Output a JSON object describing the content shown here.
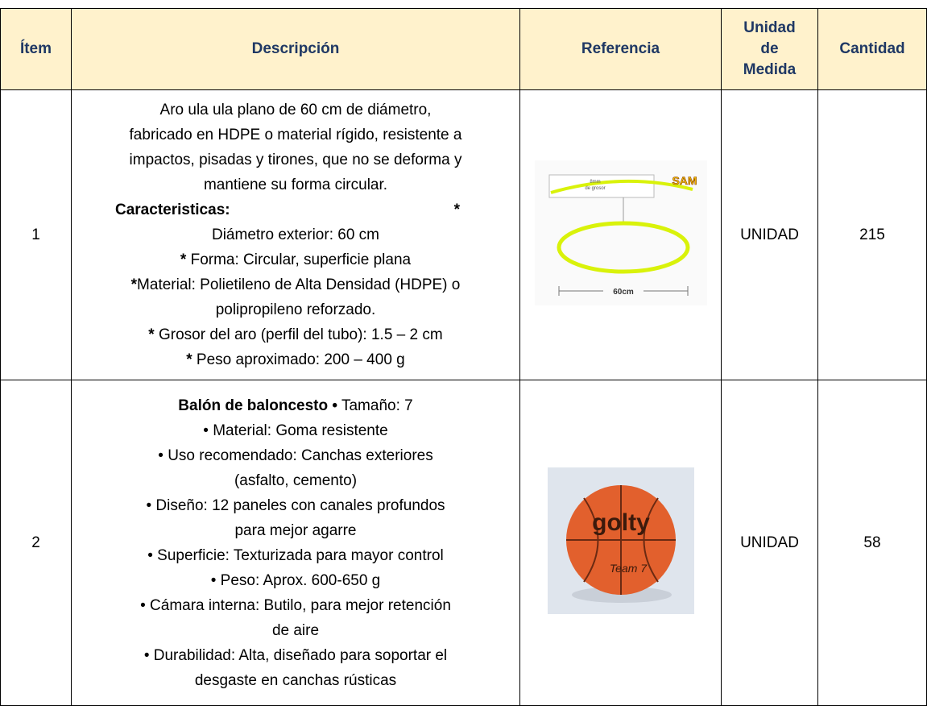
{
  "table": {
    "headers": [
      "Ítem",
      "Descripción",
      "Referencia",
      "Unidad de Medida",
      "Cantidad"
    ],
    "rows": [
      {
        "item": "1",
        "description": [
          [
            {
              "text": "Aro ula ula plano de 60 cm de diámetro,"
            }
          ],
          [
            {
              "text": "fabricado en HDPE o material rígido, resistente a"
            }
          ],
          [
            {
              "text": "impactos, pisadas y tirones, que no se deforma y"
            }
          ],
          [
            {
              "text": "mantiene su forma circular."
            }
          ],
          [
            {
              "text": "Caracteristicas:",
              "bold": true
            },
            {
              "text": "*",
              "bold": true
            }
          ],
          [
            {
              "text": "Diámetro exterior: 60 cm"
            }
          ],
          [
            {
              "text": "*",
              "bold": true
            },
            {
              "text": " Forma: Circular, superficie plana"
            }
          ],
          [
            {
              "text": "*",
              "bold": true
            },
            {
              "text": "Material: Polietileno de Alta Densidad (HDPE) o"
            }
          ],
          [
            {
              "text": "polipropileno reforzado."
            }
          ],
          [
            {
              "text": "*",
              "bold": true
            },
            {
              "text": " Grosor del aro (perfil del tubo): 1.5 – 2 cm"
            }
          ],
          [
            {
              "text": "*",
              "bold": true
            },
            {
              "text": " Peso aproximado: 200 – 400 g"
            }
          ]
        ],
        "reference_labels": [
          "8mm",
          "de grosor",
          "SAM",
          "60cm"
        ],
        "unit": "UNIDAD",
        "quantity": "215"
      },
      {
        "item": "2",
        "description": [
          [
            {
              "text": "Balón de baloncesto  •",
              "bold": true
            },
            {
              "text": " Tamaño: 7"
            }
          ],
          [
            {
              "text": "• Material: Goma resistente"
            }
          ],
          [
            {
              "text": "• Uso recomendado: Canchas exteriores"
            }
          ],
          [
            {
              "text": "(asfalto, cemento)"
            }
          ],
          [
            {
              "text": "• Diseño: 12 paneles con canales profundos"
            }
          ],
          [
            {
              "text": "para mejor agarre"
            }
          ],
          [
            {
              "text": "• Superficie: Texturizada para mayor control"
            }
          ],
          [
            {
              "text": "• Peso: Aprox. 600-650 g"
            }
          ],
          [
            {
              "text": "• Cámara interna: Butilo, para mejor retención"
            }
          ],
          [
            {
              "text": "de aire"
            }
          ],
          [
            {
              "text": "• Durabilidad: Alta, diseñado para soportar el"
            }
          ],
          [
            {
              "text": "desgaste en canchas rústicas"
            }
          ]
        ],
        "reference_labels": [
          "golty",
          "Team 7"
        ],
        "unit": "UNIDAD",
        "quantity": "58"
      }
    ]
  }
}
